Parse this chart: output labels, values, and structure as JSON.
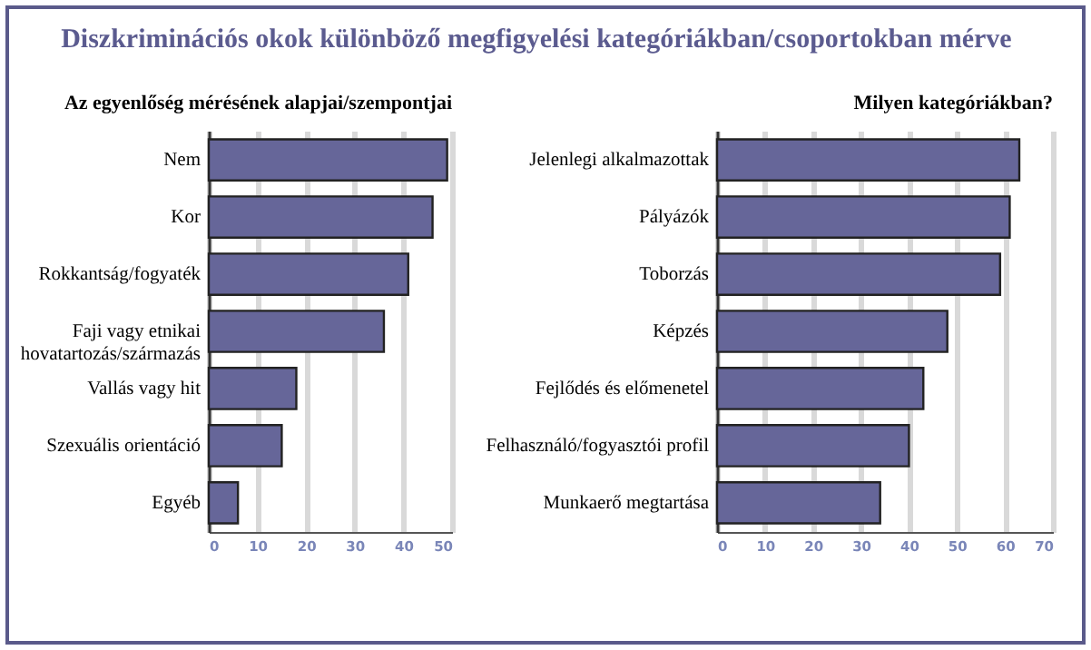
{
  "chart_data": [
    {
      "type": "bar",
      "orientation": "horizontal",
      "title": "Diszkriminációs okok különböző megfigyelési kategóriákban/csoportokban mérve",
      "subtitle": "Az egyenlőség mérésének alapjai/szempontjai",
      "categories": [
        "Nem",
        "Kor",
        "Rokkantság/fogyaték",
        "Faji vagy etnikai hovatartozás/származás",
        "Vallás vagy hit",
        "Szexuális orientáció",
        "Egyéb"
      ],
      "values": [
        49,
        46,
        41,
        36,
        18,
        15,
        6
      ],
      "color": "#666699",
      "xlim": [
        0,
        50
      ],
      "xticks": [
        0,
        10,
        20,
        30,
        40,
        50
      ],
      "grid": "x"
    },
    {
      "type": "bar",
      "orientation": "horizontal",
      "title": "Milyen kategóriákban?",
      "categories": [
        "Jelenlegi alkalmazottak",
        "Pályázók",
        "Toborzás",
        "Képzés",
        "Fejlődés és előmenetel",
        "Felhasználó/fogyasztói profil",
        "Munkaerő megtartása"
      ],
      "values": [
        63,
        61,
        59,
        48,
        43,
        40,
        34
      ],
      "color": "#666699",
      "xlim": [
        0,
        70
      ],
      "xticks": [
        0,
        10,
        20,
        30,
        40,
        50,
        60,
        70
      ],
      "grid": "x"
    }
  ]
}
